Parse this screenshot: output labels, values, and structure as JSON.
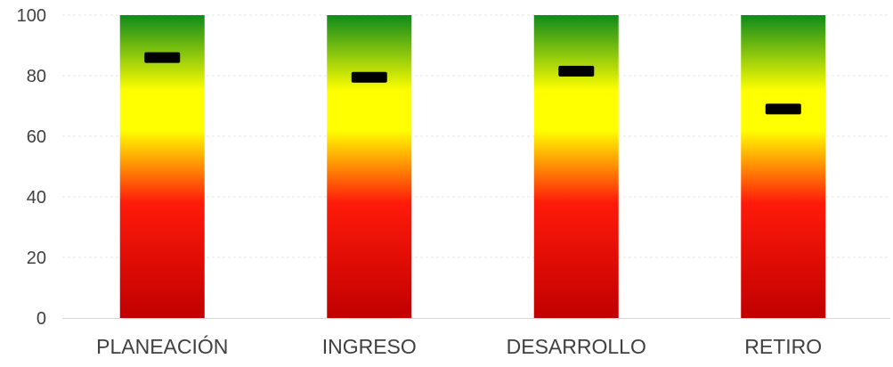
{
  "chart_data": {
    "type": "bar",
    "categories": [
      "PLANEACIÓN",
      "INGRESO",
      "DESARROLLO",
      "RETIRO"
    ],
    "values": [
      100,
      100,
      100,
      100
    ],
    "markers": [
      86,
      79.5,
      81.5,
      69
    ],
    "ylim": [
      0,
      100
    ],
    "yticks": [
      0,
      20,
      40,
      60,
      80,
      100
    ],
    "grid": true,
    "legend": "none",
    "title": "",
    "xlabel": "",
    "ylabel": "",
    "colors": {
      "gradient_top": "#0f8a1b",
      "gradient_yellow": "#ffff00",
      "gradient_red": "#ff1a0a",
      "gradient_bottom": "#c00000",
      "marker": "#000000",
      "gridline": "#e6e6e6",
      "axis": "#d9d9d9",
      "text": "#404040"
    }
  }
}
